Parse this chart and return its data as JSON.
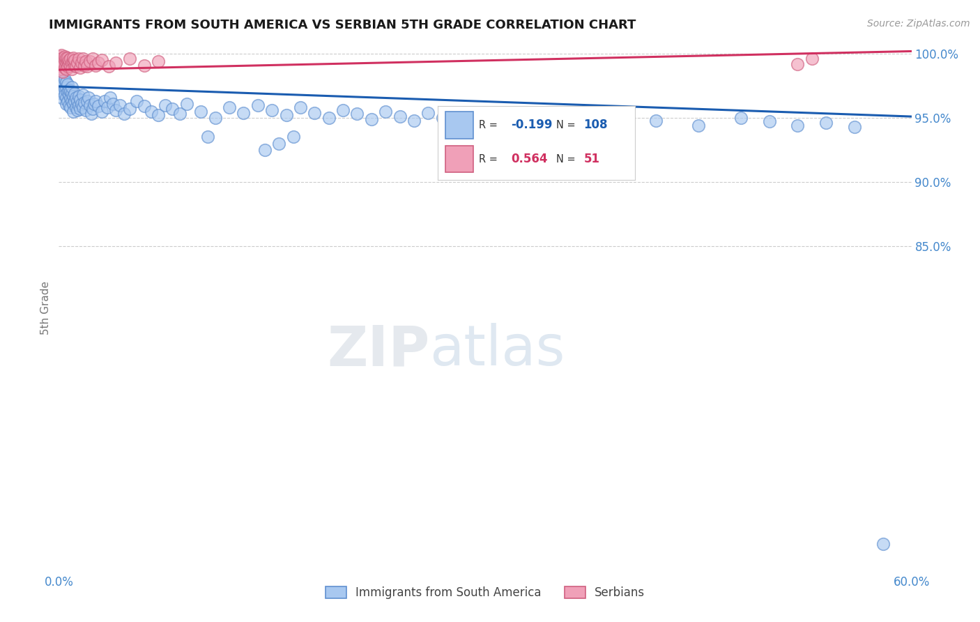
{
  "title": "IMMIGRANTS FROM SOUTH AMERICA VS SERBIAN 5TH GRADE CORRELATION CHART",
  "source": "Source: ZipAtlas.com",
  "ylabel": "5th Grade",
  "legend_label1": "Immigrants from South America",
  "legend_label2": "Serbians",
  "r1": -0.199,
  "n1": 108,
  "r2": 0.564,
  "n2": 51,
  "xmin": 0.0,
  "xmax": 0.6,
  "ymin": 0.595,
  "ymax": 1.008,
  "yticks": [
    0.85,
    0.9,
    0.95,
    1.0
  ],
  "ytick_labels": [
    "85.0%",
    "90.0%",
    "95.0%",
    "100.0%"
  ],
  "xticks": [
    0.0,
    0.1,
    0.2,
    0.3,
    0.4,
    0.5,
    0.6
  ],
  "xtick_labels": [
    "0.0%",
    "",
    "",
    "",
    "",
    "",
    "60.0%"
  ],
  "color_blue": "#a8c8f0",
  "color_blue_line": "#1a5cb0",
  "color_blue_edge": "#6090d0",
  "color_pink": "#f0a0b8",
  "color_pink_line": "#d03060",
  "color_pink_edge": "#d06080",
  "color_axis_labels": "#4488cc",
  "watermark_zip": "ZIP",
  "watermark_atlas": "atlas",
  "blue_scatter_x": [
    0.001,
    0.001,
    0.002,
    0.002,
    0.002,
    0.003,
    0.003,
    0.003,
    0.004,
    0.004,
    0.004,
    0.005,
    0.005,
    0.005,
    0.005,
    0.006,
    0.006,
    0.006,
    0.007,
    0.007,
    0.007,
    0.008,
    0.008,
    0.008,
    0.009,
    0.009,
    0.009,
    0.01,
    0.01,
    0.01,
    0.011,
    0.011,
    0.012,
    0.012,
    0.013,
    0.013,
    0.014,
    0.014,
    0.015,
    0.015,
    0.016,
    0.017,
    0.017,
    0.018,
    0.019,
    0.02,
    0.021,
    0.022,
    0.023,
    0.024,
    0.025,
    0.026,
    0.028,
    0.03,
    0.032,
    0.034,
    0.036,
    0.038,
    0.04,
    0.043,
    0.046,
    0.05,
    0.055,
    0.06,
    0.065,
    0.07,
    0.075,
    0.08,
    0.085,
    0.09,
    0.1,
    0.11,
    0.12,
    0.13,
    0.14,
    0.15,
    0.16,
    0.17,
    0.18,
    0.19,
    0.2,
    0.21,
    0.22,
    0.23,
    0.24,
    0.25,
    0.26,
    0.27,
    0.28,
    0.29,
    0.3,
    0.32,
    0.34,
    0.36,
    0.38,
    0.4,
    0.42,
    0.45,
    0.48,
    0.5,
    0.52,
    0.54,
    0.56,
    0.145,
    0.155,
    0.165,
    0.105,
    0.58
  ],
  "blue_scatter_y": [
    0.978,
    0.972,
    0.975,
    0.969,
    0.982,
    0.976,
    0.97,
    0.965,
    0.973,
    0.968,
    0.98,
    0.966,
    0.974,
    0.961,
    0.978,
    0.963,
    0.97,
    0.976,
    0.968,
    0.972,
    0.96,
    0.965,
    0.971,
    0.958,
    0.963,
    0.969,
    0.974,
    0.967,
    0.961,
    0.955,
    0.969,
    0.963,
    0.966,
    0.958,
    0.963,
    0.956,
    0.96,
    0.967,
    0.964,
    0.957,
    0.961,
    0.958,
    0.968,
    0.962,
    0.956,
    0.963,
    0.966,
    0.96,
    0.953,
    0.957,
    0.961,
    0.963,
    0.959,
    0.955,
    0.963,
    0.958,
    0.966,
    0.961,
    0.956,
    0.96,
    0.953,
    0.957,
    0.963,
    0.959,
    0.955,
    0.952,
    0.96,
    0.957,
    0.953,
    0.961,
    0.955,
    0.95,
    0.958,
    0.954,
    0.96,
    0.956,
    0.952,
    0.958,
    0.954,
    0.95,
    0.956,
    0.953,
    0.949,
    0.955,
    0.951,
    0.948,
    0.954,
    0.95,
    0.946,
    0.952,
    0.951,
    0.947,
    0.953,
    0.949,
    0.945,
    0.951,
    0.948,
    0.944,
    0.95,
    0.947,
    0.944,
    0.946,
    0.943,
    0.925,
    0.93,
    0.935,
    0.935,
    0.617
  ],
  "pink_scatter_x": [
    0.001,
    0.001,
    0.001,
    0.002,
    0.002,
    0.002,
    0.002,
    0.003,
    0.003,
    0.003,
    0.003,
    0.004,
    0.004,
    0.004,
    0.005,
    0.005,
    0.005,
    0.006,
    0.006,
    0.006,
    0.007,
    0.007,
    0.008,
    0.008,
    0.009,
    0.009,
    0.01,
    0.01,
    0.011,
    0.011,
    0.012,
    0.013,
    0.014,
    0.015,
    0.016,
    0.017,
    0.018,
    0.019,
    0.02,
    0.022,
    0.024,
    0.026,
    0.028,
    0.03,
    0.035,
    0.04,
    0.05,
    0.06,
    0.07,
    0.52,
    0.53
  ],
  "pink_scatter_y": [
    0.995,
    0.998,
    0.99,
    0.996,
    0.993,
    0.999,
    0.988,
    0.994,
    0.997,
    0.991,
    0.986,
    0.995,
    0.998,
    0.989,
    0.993,
    0.997,
    0.988,
    0.994,
    0.99,
    0.997,
    0.992,
    0.995,
    0.99,
    0.996,
    0.993,
    0.988,
    0.994,
    0.997,
    0.991,
    0.995,
    0.99,
    0.993,
    0.996,
    0.989,
    0.993,
    0.996,
    0.991,
    0.994,
    0.99,
    0.994,
    0.996,
    0.991,
    0.993,
    0.995,
    0.99,
    0.993,
    0.996,
    0.991,
    0.994,
    0.992,
    0.996
  ],
  "blue_trend_x": [
    0.0,
    0.6
  ],
  "blue_trend_y": [
    0.9745,
    0.951
  ],
  "pink_trend_x": [
    0.0,
    0.6
  ],
  "pink_trend_y": [
    0.9875,
    1.002
  ]
}
